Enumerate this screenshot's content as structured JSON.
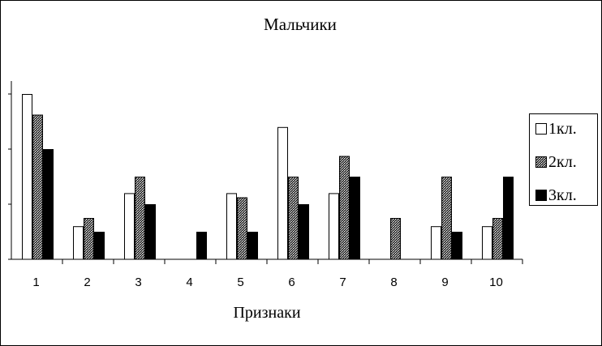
{
  "chart_data": {
    "type": "bar",
    "title": "Мальчики",
    "xlabel": "Признаки",
    "ylabel": "",
    "categories": [
      "1",
      "2",
      "3",
      "4",
      "5",
      "6",
      "7",
      "8",
      "9",
      "10"
    ],
    "ylim": [
      0,
      12
    ],
    "legend_position": "right",
    "series": [
      {
        "name": "1кл.",
        "color": "#ffffff",
        "values": [
          12,
          2.4,
          4.8,
          0,
          4.8,
          9.6,
          4.8,
          0,
          2.4,
          2.4
        ]
      },
      {
        "name": "2кл.",
        "color": "#808080",
        "values": [
          10.5,
          3,
          6,
          0,
          4.5,
          6,
          7.5,
          3,
          6,
          3
        ]
      },
      {
        "name": "3кл.",
        "color": "#000000",
        "values": [
          8,
          2,
          4,
          2,
          2,
          4,
          6,
          0,
          2,
          6
        ]
      }
    ]
  }
}
